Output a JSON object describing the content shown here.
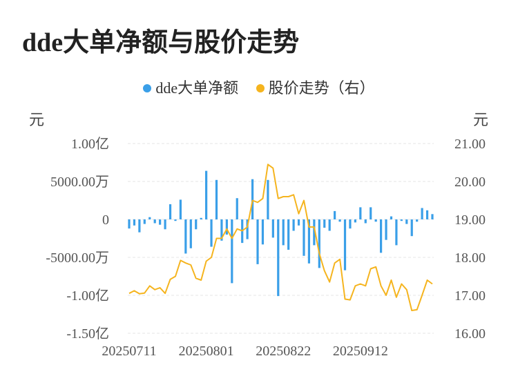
{
  "title": "dde大单净额与股价走势",
  "legend": {
    "dde": "dde大单净额",
    "price": "股价走势（右）"
  },
  "colors": {
    "bar": "#3a9fe8",
    "line": "#f5b41e",
    "grid": "#e6e6e6"
  },
  "units": {
    "left": "元",
    "right": "元"
  },
  "chart_data": {
    "type": "bar+line",
    "left_axis": {
      "ticks": [
        {
          "value": 100000000,
          "label": "1.00亿"
        },
        {
          "value": 50000000,
          "label": "5000.00万"
        },
        {
          "value": 0,
          "label": "0"
        },
        {
          "value": -50000000,
          "label": "-5000.00万"
        },
        {
          "value": -100000000,
          "label": "-1.00亿"
        },
        {
          "value": -150000000,
          "label": "-1.50亿"
        }
      ],
      "ylim": [
        -150000000,
        100000000
      ]
    },
    "right_axis": {
      "ticks": [
        {
          "value": 21,
          "label": "21.00"
        },
        {
          "value": 20,
          "label": "20.00"
        },
        {
          "value": 19,
          "label": "19.00"
        },
        {
          "value": 18,
          "label": "18.00"
        },
        {
          "value": 17,
          "label": "17.00"
        },
        {
          "value": 16,
          "label": "16.00"
        }
      ],
      "ylim": [
        16,
        21
      ]
    },
    "x_ticks": [
      {
        "index": 0,
        "label": "20250711"
      },
      {
        "index": 15,
        "label": "20250801"
      },
      {
        "index": 30,
        "label": "20250822"
      },
      {
        "index": 45,
        "label": "20250912"
      }
    ],
    "dde_net": [
      -12000000,
      -8000000,
      -17000000,
      -6000000,
      3000000,
      -5000000,
      -7000000,
      -13000000,
      20000000,
      -2000000,
      26000000,
      -45000000,
      -38000000,
      -13000000,
      2000000,
      64000000,
      -36000000,
      52000000,
      -28000000,
      -20000000,
      -84000000,
      28000000,
      -31000000,
      -26000000,
      53000000,
      -59000000,
      -33000000,
      52000000,
      -24000000,
      -101000000,
      -34000000,
      -40000000,
      -15000000,
      -8000000,
      -48000000,
      -58000000,
      -34000000,
      -64000000,
      -11000000,
      -15000000,
      11000000,
      -3000000,
      -67000000,
      -12000000,
      -4000000,
      16000000,
      -5000000,
      16000000,
      -3000000,
      -44000000,
      -27000000,
      4000000,
      -34000000,
      -2000000,
      -6000000,
      -22000000,
      -3000000,
      15000000,
      12000000,
      7000000
    ],
    "price": [
      17.05,
      17.12,
      17.04,
      17.06,
      17.25,
      17.15,
      17.2,
      17.05,
      17.42,
      17.5,
      17.92,
      17.85,
      17.8,
      17.45,
      17.4,
      17.9,
      18.0,
      18.5,
      18.5,
      18.75,
      18.5,
      18.75,
      18.7,
      18.8,
      19.5,
      19.45,
      19.55,
      20.45,
      20.35,
      19.55,
      19.6,
      19.6,
      19.65,
      19.15,
      19.5,
      18.8,
      18.8,
      18.1,
      17.65,
      17.35,
      17.85,
      17.95,
      16.9,
      16.88,
      17.25,
      17.3,
      17.25,
      17.7,
      17.75,
      17.25,
      17.0,
      17.4,
      16.95,
      17.3,
      17.15,
      16.6,
      16.62,
      17.0,
      17.4,
      17.3
    ]
  }
}
